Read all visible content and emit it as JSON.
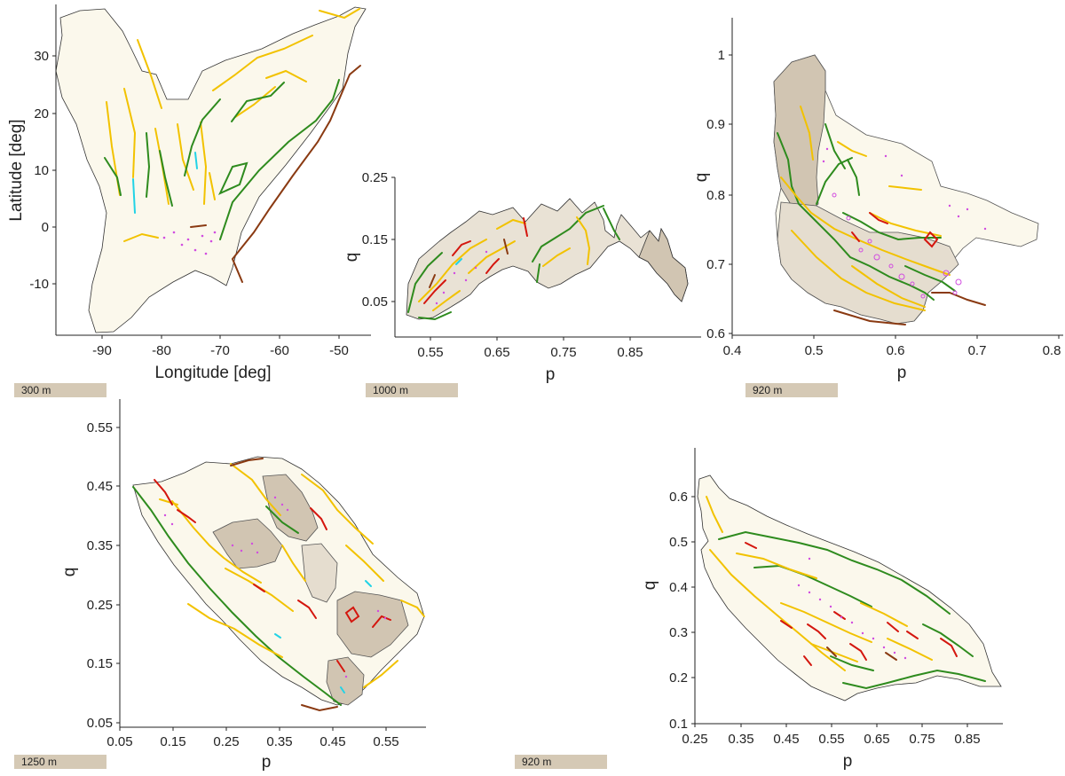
{
  "panels": [
    {
      "id": "a",
      "xlabel": "Longitude [deg]",
      "ylabel": "Latitude [deg]",
      "xticks": [
        "-90",
        "-80",
        "-70",
        "-60",
        "-50"
      ],
      "yticks": [
        "30",
        "20",
        "10",
        "0",
        "-10"
      ],
      "scale": "300 m"
    },
    {
      "id": "b",
      "xlabel": "p",
      "ylabel": "q",
      "xticks": [
        "0.55",
        "0.65",
        "0.75",
        "0.85"
      ],
      "yticks": [
        "0.25",
        "0.15",
        "0.05"
      ],
      "scale": "1000 m"
    },
    {
      "id": "c",
      "xlabel": "p",
      "ylabel": "q",
      "xticks": [
        "0.4",
        "0.5",
        "0.6",
        "0.7",
        "0.8"
      ],
      "yticks": [
        "1",
        "0.9",
        "0.8",
        "0.7",
        "0.6"
      ],
      "scale": "920 m"
    },
    {
      "id": "d",
      "xlabel": "p",
      "ylabel": "q",
      "xticks": [
        "0.05",
        "0.15",
        "0.25",
        "0.35",
        "0.45",
        "0.55"
      ],
      "yticks": [
        "0.55",
        "0.45",
        "0.35",
        "0.25",
        "0.15",
        "0.05"
      ],
      "scale": "1250 m"
    },
    {
      "id": "e",
      "xlabel": "p",
      "ylabel": "q",
      "xticks": [
        "0.25",
        "0.35",
        "0.45",
        "0.55",
        "0.65",
        "0.75",
        "0.85"
      ],
      "yticks": [
        "0.6",
        "0.5",
        "0.4",
        "0.3",
        "0.2",
        "0.1"
      ],
      "scale": "920 m"
    }
  ],
  "colors": {
    "land": "#fbf8ec",
    "region": "#d1c5b2",
    "region_light": "#e9e2d5",
    "yellow": "#f2c200",
    "green": "#2e8b1e",
    "red": "#d4160e",
    "brown": "#8a3a12",
    "cyan": "#22d3e6",
    "magenta": "#d14ce0"
  }
}
